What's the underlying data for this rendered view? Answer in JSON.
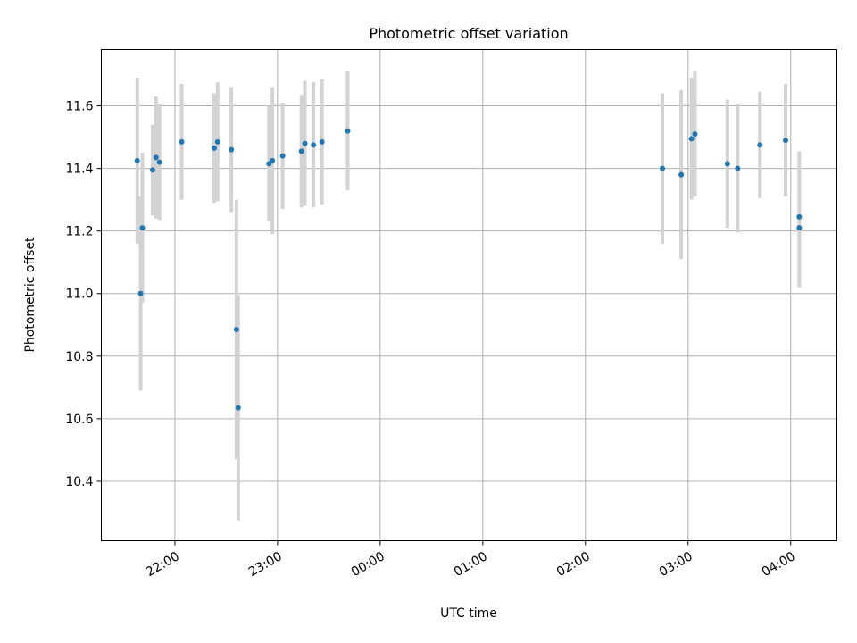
{
  "chart_data": {
    "type": "scatter",
    "title": "Photometric offset variation",
    "xlabel": "UTC time",
    "ylabel": "Photometric offset",
    "x_axis": {
      "ticks": [
        "21:00",
        "22:00",
        "23:00",
        "00:00",
        "01:00",
        "02:00",
        "03:00",
        "04:00"
      ],
      "tick_labels": [
        "",
        "22:00",
        "23:00",
        "00:00",
        "01:00",
        "02:00",
        "03:00",
        "04:00"
      ],
      "range": [
        "21:17",
        "04:27"
      ]
    },
    "y_axis": {
      "ticks": [
        10.4,
        10.6,
        10.8,
        11.0,
        11.2,
        11.4,
        11.6
      ],
      "tick_labels": [
        "10.4",
        "10.6",
        "10.8",
        "11.0",
        "11.2",
        "11.4",
        "11.6"
      ],
      "range": [
        10.21,
        11.78
      ]
    },
    "grid": true,
    "point_color": "#1f77b4",
    "errorbar_color": "#d3d3d3",
    "series": [
      {
        "points": [
          {
            "time": "21:38",
            "y": 11.425,
            "err": 0.265
          },
          {
            "time": "21:40",
            "y": 11.0,
            "err": 0.31
          },
          {
            "time": "21:41",
            "y": 11.21,
            "err": 0.24
          },
          {
            "time": "21:47",
            "y": 11.395,
            "err": 0.145
          },
          {
            "time": "21:49",
            "y": 11.435,
            "err": 0.195
          },
          {
            "time": "21:51",
            "y": 11.42,
            "err": 0.185
          },
          {
            "time": "22:04",
            "y": 11.485,
            "err": 0.185
          },
          {
            "time": "22:23",
            "y": 11.465,
            "err": 0.175
          },
          {
            "time": "22:25",
            "y": 11.485,
            "err": 0.19
          },
          {
            "time": "22:33",
            "y": 11.46,
            "err": 0.2
          },
          {
            "time": "22:36",
            "y": 10.885,
            "err": 0.415
          },
          {
            "time": "22:37",
            "y": 10.635,
            "err": 0.36
          },
          {
            "time": "22:55",
            "y": 11.415,
            "err": 0.185
          },
          {
            "time": "22:57",
            "y": 11.425,
            "err": 0.235
          },
          {
            "time": "23:03",
            "y": 11.44,
            "err": 0.17
          },
          {
            "time": "23:14",
            "y": 11.455,
            "err": 0.18
          },
          {
            "time": "23:16",
            "y": 11.48,
            "err": 0.2
          },
          {
            "time": "23:21",
            "y": 11.475,
            "err": 0.2
          },
          {
            "time": "23:26",
            "y": 11.485,
            "err": 0.2
          },
          {
            "time": "23:41",
            "y": 11.52,
            "err": 0.19
          },
          {
            "time": "02:45",
            "y": 11.4,
            "err": 0.24
          },
          {
            "time": "02:56",
            "y": 11.38,
            "err": 0.27
          },
          {
            "time": "03:02",
            "y": 11.495,
            "err": 0.195
          },
          {
            "time": "03:04",
            "y": 11.51,
            "err": 0.2
          },
          {
            "time": "03:23",
            "y": 11.415,
            "err": 0.205
          },
          {
            "time": "03:29",
            "y": 11.4,
            "err": 0.205
          },
          {
            "time": "03:42",
            "y": 11.475,
            "err": 0.17
          },
          {
            "time": "03:57",
            "y": 11.49,
            "err": 0.18
          },
          {
            "time": "04:05",
            "y": 11.245,
            "err": 0.21
          },
          {
            "time": "04:05",
            "y": 11.21,
            "err": 0.19
          }
        ]
      }
    ]
  }
}
